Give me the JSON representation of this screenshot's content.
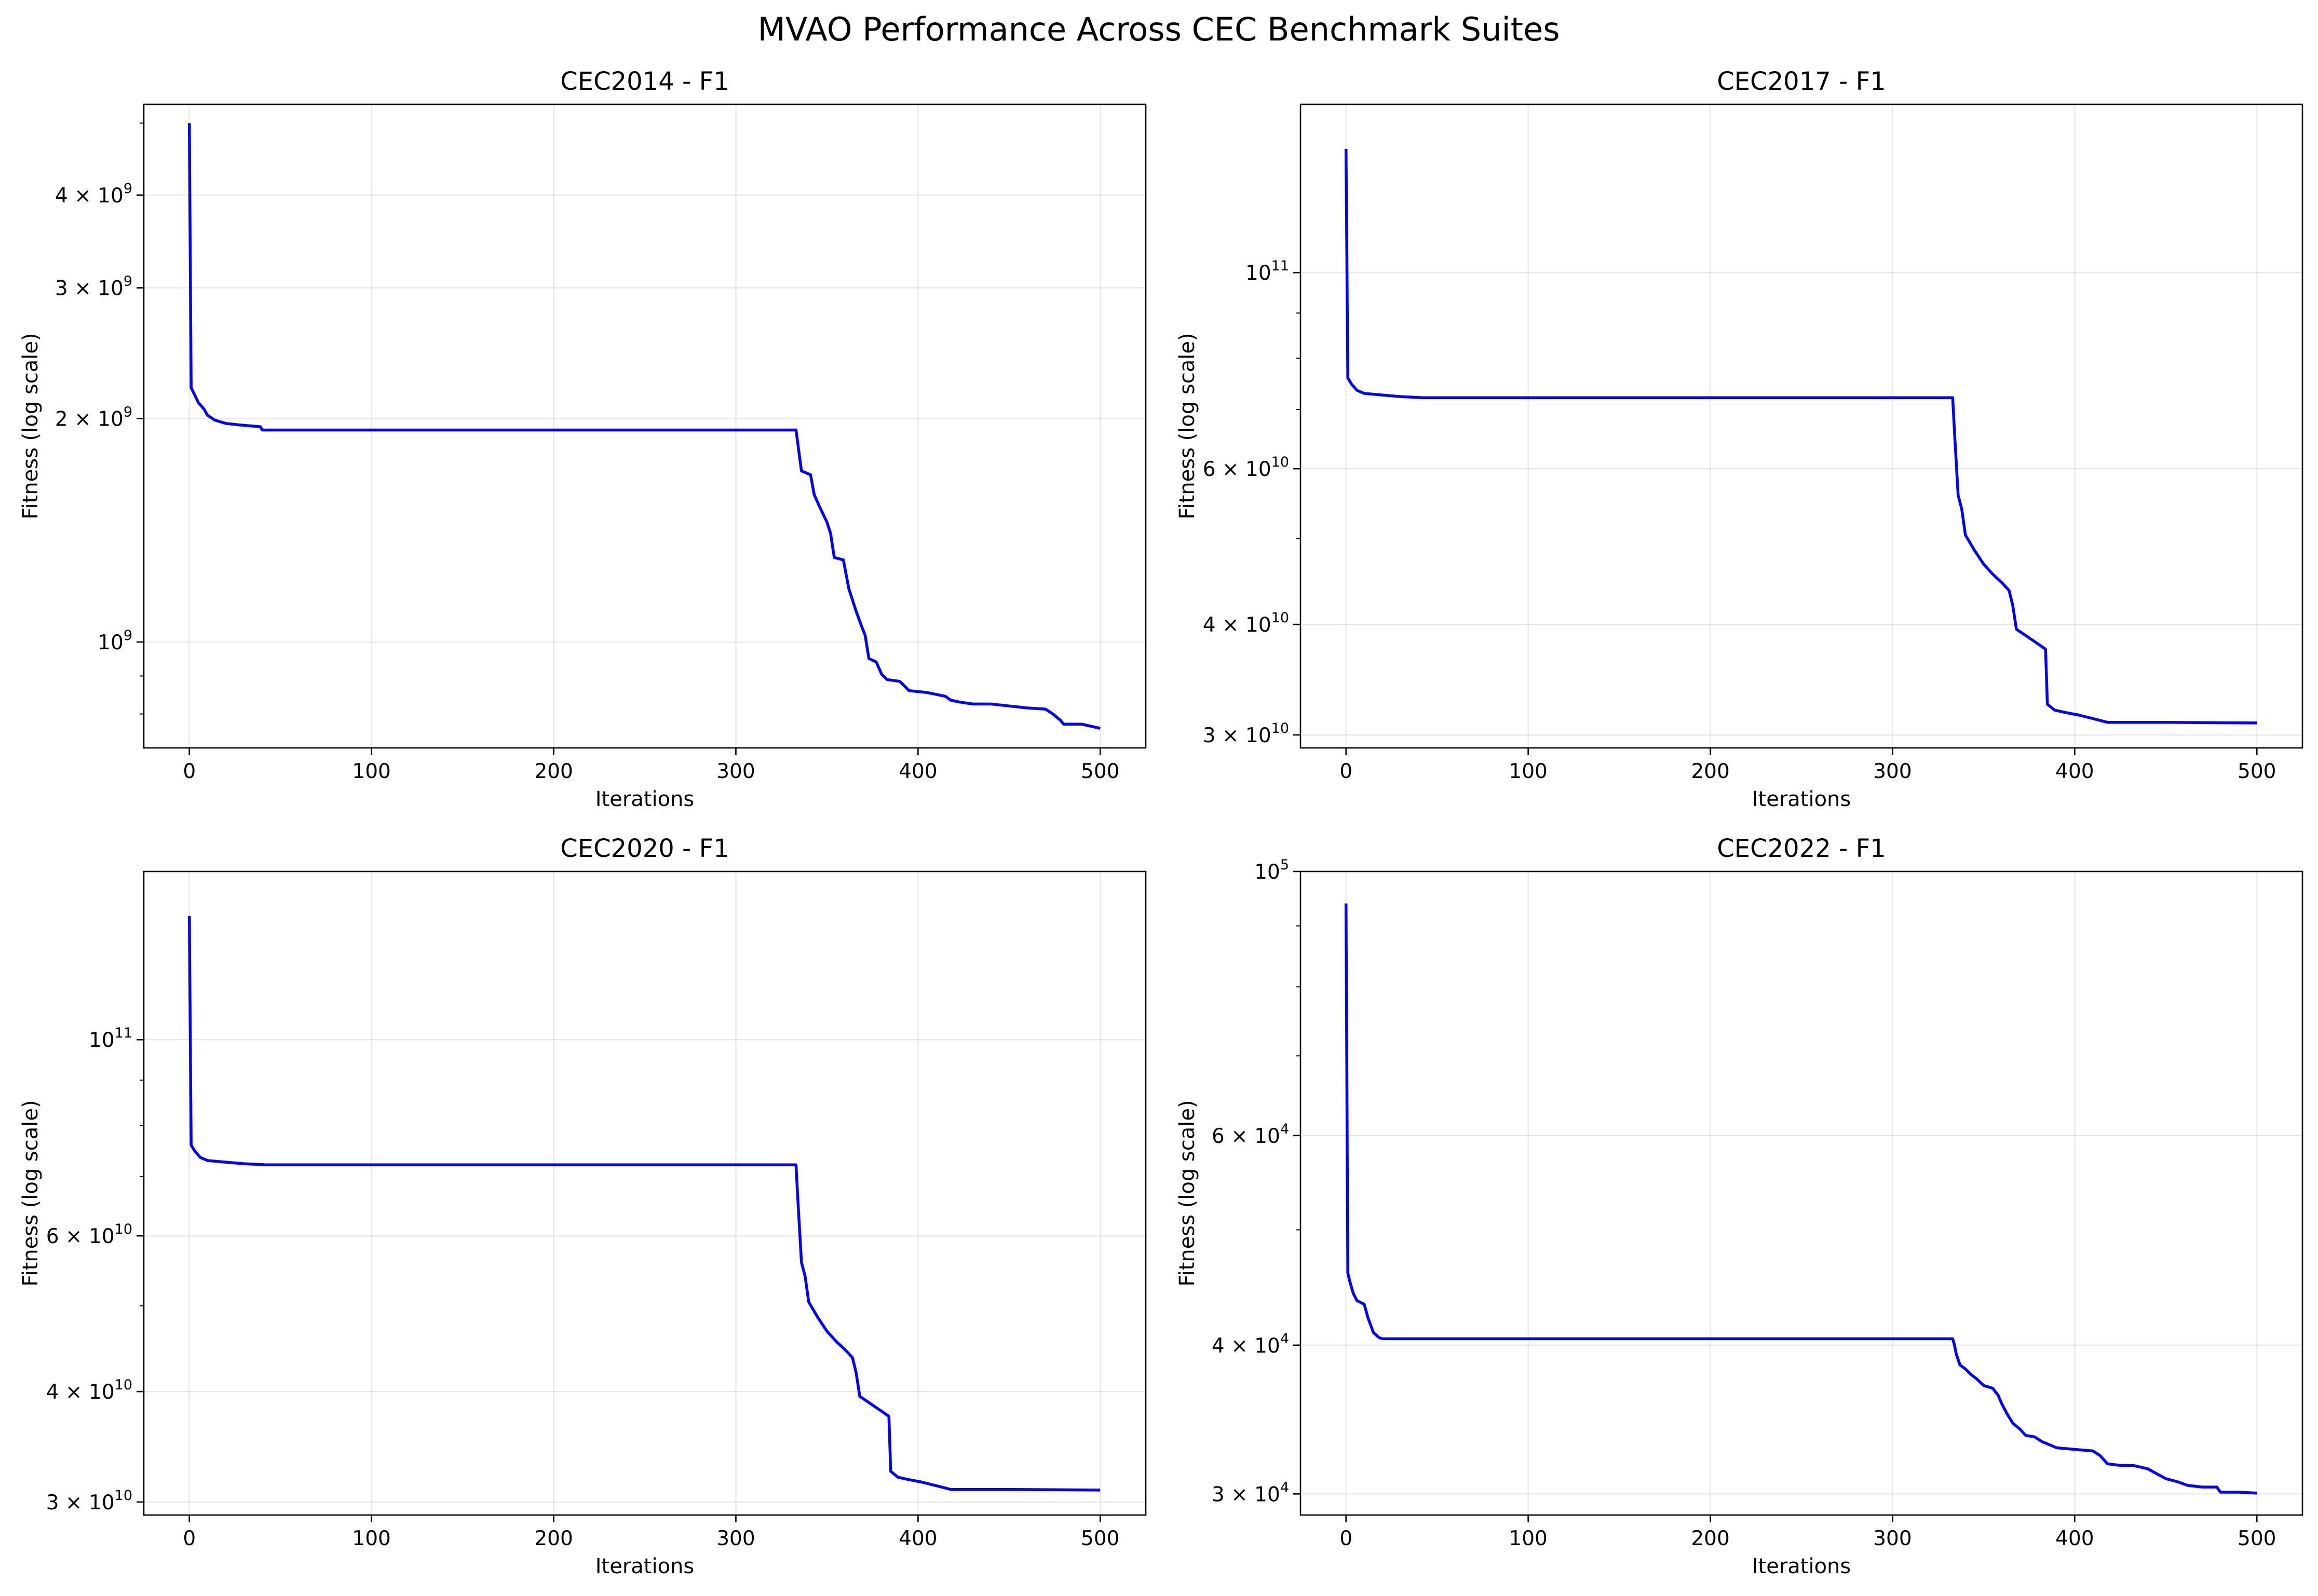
{
  "suptitle": "MVAO Performance Across CEC Benchmark Suites",
  "colors": {
    "line": "#0000ff",
    "frame": "#000000",
    "grid": "#b0b0b0"
  },
  "chart_data": [
    {
      "type": "line",
      "title": "CEC2014 - F1",
      "xlabel": "Iterations",
      "ylabel": "Fitness (log scale)",
      "yscale": "log",
      "grid": true,
      "xlim": [
        -25,
        525
      ],
      "ylim": [
        720000000,
        5300000000
      ],
      "xticks": [
        {
          "v": 0,
          "label": "0"
        },
        {
          "v": 100,
          "label": "100"
        },
        {
          "v": 200,
          "label": "200"
        },
        {
          "v": 300,
          "label": "300"
        },
        {
          "v": 400,
          "label": "400"
        },
        {
          "v": 500,
          "label": "500"
        }
      ],
      "yticks": [
        {
          "v": 1000000000,
          "base": "10",
          "exp": "9"
        },
        {
          "v": 2000000000,
          "base": "2 × 10",
          "exp": "9"
        },
        {
          "v": 3000000000,
          "base": "3 × 10",
          "exp": "9"
        },
        {
          "v": 4000000000,
          "base": "4 × 10",
          "exp": "9"
        }
      ],
      "yminor": [
        800000000,
        900000000,
        5000000000
      ],
      "series": [
        {
          "points": [
            [
              0,
              5000000000
            ],
            [
              1,
              2200000000
            ],
            [
              3,
              2150000000
            ],
            [
              5,
              2100000000
            ],
            [
              8,
              2060000000
            ],
            [
              10,
              2020000000
            ],
            [
              14,
              1990000000
            ],
            [
              20,
              1970000000
            ],
            [
              28,
              1960000000
            ],
            [
              39,
              1950000000
            ],
            [
              40,
              1930000000
            ],
            [
              333,
              1930000000
            ],
            [
              334,
              1850000000
            ],
            [
              336,
              1700000000
            ],
            [
              341,
              1680000000
            ],
            [
              343,
              1580000000
            ],
            [
              346,
              1520000000
            ],
            [
              350,
              1450000000
            ],
            [
              352,
              1400000000
            ],
            [
              354,
              1300000000
            ],
            [
              359,
              1290000000
            ],
            [
              362,
              1180000000
            ],
            [
              366,
              1100000000
            ],
            [
              369,
              1050000000
            ],
            [
              371,
              1020000000
            ],
            [
              373,
              950000000
            ],
            [
              377,
              940000000
            ],
            [
              380,
              905000000
            ],
            [
              383,
              890000000
            ],
            [
              390,
              885000000
            ],
            [
              392,
              875000000
            ],
            [
              395,
              860000000
            ],
            [
              405,
              855000000
            ],
            [
              410,
              850000000
            ],
            [
              415,
              845000000
            ],
            [
              418,
              835000000
            ],
            [
              423,
              830000000
            ],
            [
              430,
              825000000
            ],
            [
              440,
              825000000
            ],
            [
              450,
              820000000
            ],
            [
              460,
              815000000
            ],
            [
              470,
              812000000
            ],
            [
              474,
              800000000
            ],
            [
              478,
              785000000
            ],
            [
              480,
              775000000
            ],
            [
              490,
              775000000
            ],
            [
              500,
              765000000
            ]
          ]
        }
      ]
    },
    {
      "type": "line",
      "title": "CEC2017 - F1",
      "xlabel": "Iterations",
      "ylabel": "Fitness (log scale)",
      "yscale": "log",
      "grid": true,
      "xlim": [
        -25,
        525
      ],
      "ylim": [
        29000000000,
        155000000000
      ],
      "xticks": [
        {
          "v": 0,
          "label": "0"
        },
        {
          "v": 100,
          "label": "100"
        },
        {
          "v": 200,
          "label": "200"
        },
        {
          "v": 300,
          "label": "300"
        },
        {
          "v": 400,
          "label": "400"
        },
        {
          "v": 500,
          "label": "500"
        }
      ],
      "yticks": [
        {
          "v": 30000000000,
          "base": "3 × 10",
          "exp": "10"
        },
        {
          "v": 40000000000,
          "base": "4 × 10",
          "exp": "10"
        },
        {
          "v": 60000000000,
          "base": "6 × 10",
          "exp": "10"
        },
        {
          "v": 100000000000,
          "base": "10",
          "exp": "11"
        }
      ],
      "yminor": [
        50000000000,
        70000000000,
        80000000000,
        90000000000
      ],
      "series": [
        {
          "points": [
            [
              0,
              138000000000
            ],
            [
              1,
              76000000000
            ],
            [
              3,
              74800000000
            ],
            [
              6,
              73600000000
            ],
            [
              10,
              73000000000
            ],
            [
              20,
              72700000000
            ],
            [
              30,
              72400000000
            ],
            [
              42,
              72200000000
            ],
            [
              333,
              72200000000
            ],
            [
              334,
              66000000000
            ],
            [
              336,
              56000000000
            ],
            [
              338,
              54000000000
            ],
            [
              340,
              50500000000
            ],
            [
              345,
              48500000000
            ],
            [
              350,
              46800000000
            ],
            [
              355,
              45600000000
            ],
            [
              360,
              44600000000
            ],
            [
              364,
              43700000000
            ],
            [
              366,
              42000000000
            ],
            [
              368,
              39500000000
            ],
            [
              372,
              39000000000
            ],
            [
              376,
              38500000000
            ],
            [
              380,
              38000000000
            ],
            [
              384,
              37500000000
            ],
            [
              385,
              32500000000
            ],
            [
              389,
              32000000000
            ],
            [
              395,
              31800000000
            ],
            [
              402,
              31600000000
            ],
            [
              410,
              31300000000
            ],
            [
              418,
              31000000000
            ],
            [
              450,
              31000000000
            ],
            [
              500,
              30950000000
            ]
          ]
        }
      ]
    },
    {
      "type": "line",
      "title": "CEC2020 - F1",
      "xlabel": "Iterations",
      "ylabel": "Fitness (log scale)",
      "yscale": "log",
      "grid": true,
      "xlim": [
        -25,
        525
      ],
      "ylim": [
        29000000000,
        155000000000
      ],
      "xticks": [
        {
          "v": 0,
          "label": "0"
        },
        {
          "v": 100,
          "label": "100"
        },
        {
          "v": 200,
          "label": "200"
        },
        {
          "v": 300,
          "label": "300"
        },
        {
          "v": 400,
          "label": "400"
        },
        {
          "v": 500,
          "label": "500"
        }
      ],
      "yticks": [
        {
          "v": 30000000000,
          "base": "3 × 10",
          "exp": "10"
        },
        {
          "v": 40000000000,
          "base": "4 × 10",
          "exp": "10"
        },
        {
          "v": 60000000000,
          "base": "6 × 10",
          "exp": "10"
        },
        {
          "v": 100000000000,
          "base": "10",
          "exp": "11"
        }
      ],
      "yminor": [
        50000000000,
        70000000000,
        80000000000,
        90000000000
      ],
      "series": [
        {
          "points": [
            [
              0,
              138000000000
            ],
            [
              1,
              76000000000
            ],
            [
              3,
              74800000000
            ],
            [
              6,
              73600000000
            ],
            [
              10,
              73000000000
            ],
            [
              20,
              72700000000
            ],
            [
              30,
              72400000000
            ],
            [
              42,
              72200000000
            ],
            [
              333,
              72200000000
            ],
            [
              334,
              66000000000
            ],
            [
              336,
              56000000000
            ],
            [
              338,
              54000000000
            ],
            [
              340,
              50500000000
            ],
            [
              345,
              48500000000
            ],
            [
              350,
              46800000000
            ],
            [
              355,
              45600000000
            ],
            [
              360,
              44600000000
            ],
            [
              364,
              43700000000
            ],
            [
              366,
              42000000000
            ],
            [
              368,
              39500000000
            ],
            [
              372,
              39000000000
            ],
            [
              376,
              38500000000
            ],
            [
              380,
              38000000000
            ],
            [
              384,
              37500000000
            ],
            [
              385,
              32500000000
            ],
            [
              389,
              32000000000
            ],
            [
              395,
              31800000000
            ],
            [
              402,
              31600000000
            ],
            [
              410,
              31300000000
            ],
            [
              418,
              31000000000
            ],
            [
              450,
              31000000000
            ],
            [
              500,
              30950000000
            ]
          ]
        }
      ]
    },
    {
      "type": "line",
      "title": "CEC2022 - F1",
      "xlabel": "Iterations",
      "ylabel": "Fitness (log scale)",
      "yscale": "log",
      "grid": true,
      "xlim": [
        -25,
        525
      ],
      "ylim": [
        28800,
        100000
      ],
      "xticks": [
        {
          "v": 0,
          "label": "0"
        },
        {
          "v": 100,
          "label": "100"
        },
        {
          "v": 200,
          "label": "200"
        },
        {
          "v": 300,
          "label": "300"
        },
        {
          "v": 400,
          "label": "400"
        },
        {
          "v": 500,
          "label": "500"
        }
      ],
      "yticks": [
        {
          "v": 30000,
          "base": "3 × 10",
          "exp": "4"
        },
        {
          "v": 40000,
          "base": "4 × 10",
          "exp": "4"
        },
        {
          "v": 60000,
          "base": "6 × 10",
          "exp": "4"
        },
        {
          "v": 100000,
          "base": "10",
          "exp": "5"
        }
      ],
      "yminor": [
        50000,
        70000,
        80000,
        90000
      ],
      "series": [
        {
          "points": [
            [
              0,
              94000
            ],
            [
              1,
              46000
            ],
            [
              2,
              45300
            ],
            [
              4,
              44200
            ],
            [
              6,
              43600
            ],
            [
              10,
              43300
            ],
            [
              12,
              42200
            ],
            [
              15,
              41000
            ],
            [
              18,
              40600
            ],
            [
              20,
              40500
            ],
            [
              333,
              40500
            ],
            [
              334,
              40000
            ],
            [
              335,
              39300
            ],
            [
              337,
              38500
            ],
            [
              340,
              38200
            ],
            [
              343,
              37800
            ],
            [
              346,
              37500
            ],
            [
              350,
              37000
            ],
            [
              355,
              36800
            ],
            [
              358,
              36300
            ],
            [
              360,
              35700
            ],
            [
              363,
              35000
            ],
            [
              366,
              34400
            ],
            [
              370,
              34000
            ],
            [
              373,
              33600
            ],
            [
              378,
              33500
            ],
            [
              382,
              33200
            ],
            [
              386,
              33000
            ],
            [
              390,
              32800
            ],
            [
              400,
              32700
            ],
            [
              410,
              32600
            ],
            [
              414,
              32300
            ],
            [
              418,
              31800
            ],
            [
              425,
              31700
            ],
            [
              432,
              31700
            ],
            [
              440,
              31500
            ],
            [
              445,
              31200
            ],
            [
              450,
              30900
            ],
            [
              457,
              30700
            ],
            [
              462,
              30500
            ],
            [
              470,
              30400
            ],
            [
              478,
              30400
            ],
            [
              480,
              30100
            ],
            [
              490,
              30100
            ],
            [
              500,
              30050
            ]
          ]
        }
      ]
    }
  ]
}
